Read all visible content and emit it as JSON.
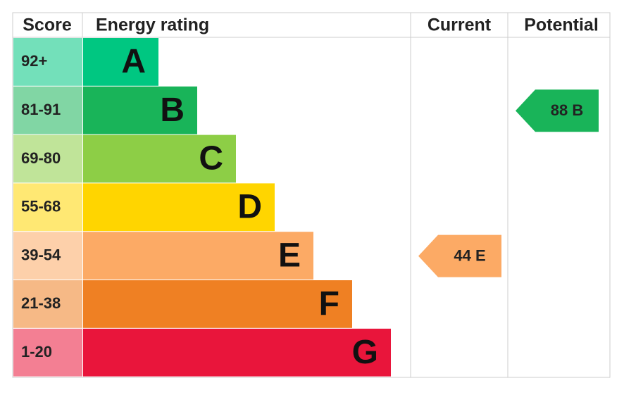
{
  "header": {
    "score": "Score",
    "energy_rating": "Energy rating",
    "current": "Current",
    "potential": "Potential"
  },
  "bands": [
    {
      "score": "92+",
      "letter": "A",
      "color": "#00c781"
    },
    {
      "score": "81-91",
      "letter": "B",
      "color": "#19b459"
    },
    {
      "score": "69-80",
      "letter": "C",
      "color": "#8dce46"
    },
    {
      "score": "55-68",
      "letter": "D",
      "color": "#ffd500"
    },
    {
      "score": "39-54",
      "letter": "E",
      "color": "#fcaa65"
    },
    {
      "score": "21-38",
      "letter": "F",
      "color": "#ef8023"
    },
    {
      "score": "1-20",
      "letter": "G",
      "color": "#e9153b"
    }
  ],
  "current": {
    "label": "44 E",
    "rating": "E"
  },
  "potential": {
    "label": "88 B",
    "rating": "B"
  }
}
